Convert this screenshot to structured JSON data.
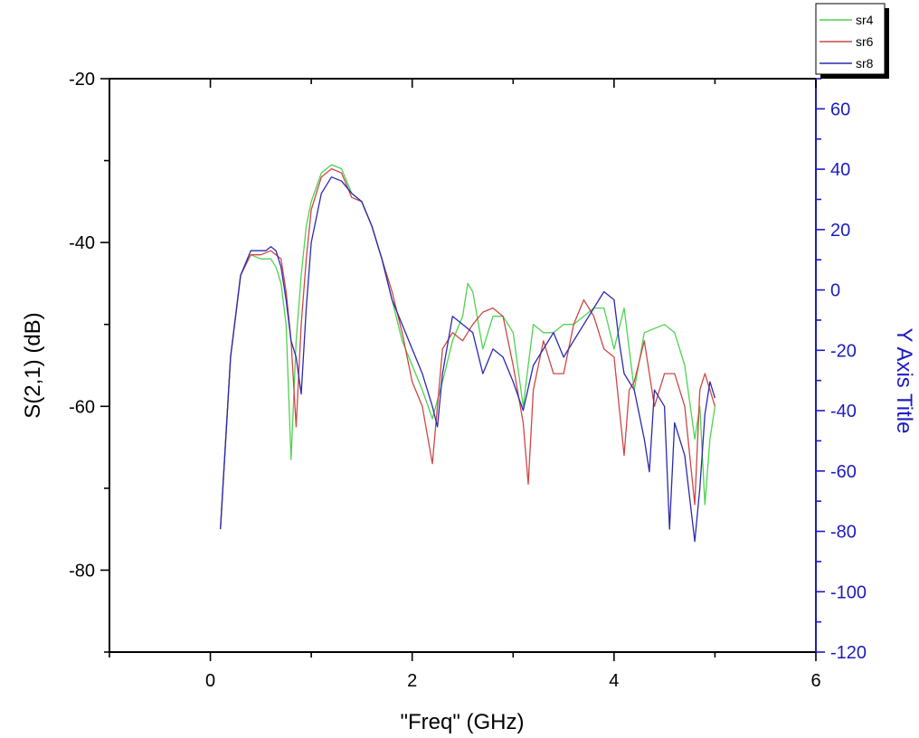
{
  "chart_data": {
    "type": "line",
    "title": "",
    "xlabel": "\"Freq\" (GHz)",
    "ylabel": "S(2,1) (dB)",
    "y2label": "Y Axis Title",
    "xlim": [
      -1,
      6
    ],
    "ylim": [
      -90,
      -20
    ],
    "y2lim": [
      -120,
      70
    ],
    "x_ticks": [
      0,
      2,
      4,
      6
    ],
    "y_ticks": [
      -80,
      -60,
      -40,
      -20
    ],
    "y2_ticks": [
      -120,
      -100,
      -80,
      -60,
      -40,
      -20,
      0,
      20,
      40,
      60
    ],
    "grid": false,
    "legend_position": "top-right",
    "colors": {
      "sr4": "#4fd34f",
      "sr6": "#d04646",
      "sr8": "#2a2ab0",
      "axis": "#000000",
      "right_axis": "#1c1cc0"
    },
    "series": [
      {
        "name": "sr4",
        "x": [
          0.1,
          0.2,
          0.3,
          0.4,
          0.5,
          0.6,
          0.65,
          0.7,
          0.75,
          0.8,
          0.85,
          0.9,
          0.95,
          1.0,
          1.1,
          1.2,
          1.3,
          1.4,
          1.5,
          1.6,
          1.7,
          1.8,
          1.9,
          2.0,
          2.1,
          2.2,
          2.3,
          2.4,
          2.5,
          2.55,
          2.6,
          2.7,
          2.8,
          2.9,
          3.0,
          3.1,
          3.2,
          3.3,
          3.4,
          3.5,
          3.6,
          3.7,
          3.8,
          3.9,
          4.0,
          4.1,
          4.2,
          4.3,
          4.4,
          4.5,
          4.6,
          4.7,
          4.8,
          4.85,
          4.9,
          4.95,
          5.0
        ],
        "y": [
          -75,
          -54,
          -44,
          -41.5,
          -42,
          -42,
          -43,
          -45,
          -50,
          -66.5,
          -52,
          -44,
          -38,
          -35,
          -31.5,
          -30.5,
          -31,
          -34,
          -35,
          -38,
          -42,
          -47,
          -52,
          -55,
          -58,
          -61.5,
          -57,
          -52,
          -49,
          -45,
          -46,
          -53,
          -49,
          -49,
          -51,
          -60,
          -50,
          -51,
          -51,
          -50,
          -50,
          -49,
          -48,
          -48,
          -53,
          -48,
          -58,
          -51,
          -50.5,
          -50,
          -51,
          -55,
          -64,
          -60,
          -72,
          -64,
          -60
        ]
      },
      {
        "name": "sr6",
        "x": [
          0.1,
          0.2,
          0.3,
          0.4,
          0.5,
          0.6,
          0.7,
          0.75,
          0.8,
          0.85,
          0.9,
          0.95,
          1.0,
          1.1,
          1.2,
          1.3,
          1.4,
          1.5,
          1.6,
          1.7,
          1.8,
          1.9,
          2.0,
          2.1,
          2.2,
          2.3,
          2.4,
          2.5,
          2.6,
          2.7,
          2.8,
          2.9,
          3.0,
          3.1,
          3.15,
          3.2,
          3.3,
          3.4,
          3.5,
          3.6,
          3.7,
          3.8,
          3.9,
          4.0,
          4.1,
          4.15,
          4.2,
          4.3,
          4.4,
          4.5,
          4.6,
          4.7,
          4.8,
          4.85,
          4.9,
          4.95,
          5.0
        ],
        "y": [
          -75,
          -54,
          -44,
          -41.5,
          -41.5,
          -41,
          -42,
          -46,
          -52,
          -62.5,
          -50,
          -42,
          -36,
          -32,
          -31,
          -31.5,
          -34.5,
          -35,
          -38,
          -42,
          -46,
          -51,
          -57,
          -60,
          -67,
          -53,
          -51,
          -52,
          -50,
          -48.5,
          -48,
          -49,
          -55,
          -62,
          -69.5,
          -58,
          -52,
          -56,
          -56,
          -50,
          -47,
          -49,
          -53,
          -54,
          -66,
          -58,
          -57,
          -52,
          -60,
          -56,
          -56,
          -60,
          -72,
          -58,
          -56,
          -58,
          -60
        ]
      },
      {
        "name": "sr8",
        "x": [
          0.1,
          0.2,
          0.3,
          0.4,
          0.5,
          0.55,
          0.6,
          0.65,
          0.7,
          0.75,
          0.8,
          0.85,
          0.9,
          0.95,
          1.0,
          1.1,
          1.2,
          1.3,
          1.4,
          1.5,
          1.6,
          1.7,
          1.8,
          1.9,
          2.0,
          2.1,
          2.2,
          2.25,
          2.3,
          2.4,
          2.5,
          2.6,
          2.7,
          2.8,
          2.9,
          3.0,
          3.1,
          3.2,
          3.3,
          3.4,
          3.5,
          3.6,
          3.7,
          3.8,
          3.9,
          4.0,
          4.05,
          4.1,
          4.2,
          4.3,
          4.35,
          4.4,
          4.5,
          4.55,
          4.6,
          4.7,
          4.8,
          4.85,
          4.9,
          4.95,
          5.0
        ],
        "y": [
          -75,
          -54,
          -44,
          -41,
          -41,
          -41,
          -40.5,
          -41,
          -43,
          -47,
          -52,
          -54,
          -58.5,
          -48,
          -40,
          -34,
          -32,
          -32.5,
          -34,
          -35,
          -38,
          -42,
          -47,
          -50,
          -53,
          -56,
          -60,
          -62.5,
          -56,
          -49,
          -50,
          -51,
          -56,
          -53,
          -54,
          -57,
          -60.5,
          -55,
          -53,
          -51,
          -54,
          -52,
          -50,
          -48,
          -46,
          -47,
          -52,
          -56,
          -58,
          -64,
          -68,
          -58,
          -60,
          -75,
          -62,
          -66,
          -76.5,
          -70,
          -61,
          -57,
          -59
        ]
      }
    ]
  }
}
